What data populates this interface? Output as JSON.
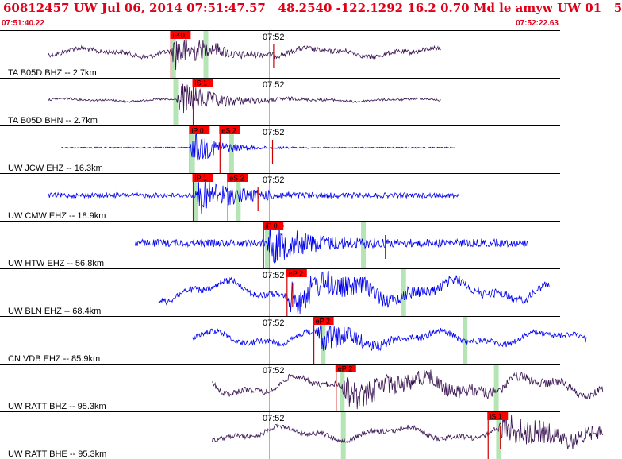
{
  "chart_data": {
    "type": "seismogram",
    "title": "60812457 UW Jul 06, 2014 07:51:47.57   48.2540 -122.1292 16.2 0.70 Md le amyw UW 01   5",
    "window_start": "07:51:40.22",
    "window_end": "07:52:22.63",
    "time_range": [
      "07:51:40.22",
      "07:52:22.63"
    ],
    "minute_marker": "07:52",
    "colors": {
      "header_text": "#e0001a",
      "pick_box": "#ff0000",
      "pick_line": "#cc0000",
      "gap": "#a8e0a8",
      "dark_trace": "#3a1552",
      "blue_trace": "#0000ee",
      "grid": "#000000"
    },
    "series": [
      {
        "name": "TA B05D BHZ -- 2.7km",
        "color": "#3a1552",
        "start_s": 0,
        "end_s": 35.2,
        "onset_s": 11.0,
        "noise": 0.12,
        "amp": 1.0,
        "decay": 2.6,
        "long_period": 0.15,
        "picks": [
          {
            "label": "iP 0",
            "t_s": 11.0
          }
        ],
        "gaps_s": [
          11.2,
          14.1
        ],
        "red_marks_s": [
          20.2
        ]
      },
      {
        "name": "TA B05D BHN -- 2.7km",
        "color": "#3a1552",
        "start_s": 0,
        "end_s": 35.2,
        "onset_s": 11.5,
        "noise": 0.05,
        "amp": 0.9,
        "decay": 3.2,
        "long_period": 0.05,
        "picks": [
          {
            "label": "iS 1",
            "t_s": 13.0
          }
        ],
        "gaps_s": [
          11.4
        ],
        "red_marks_s": []
      },
      {
        "name": "UW JCW EHZ -- 16.3km",
        "color": "#0000ee",
        "start_s": 1.2,
        "end_s": 36.4,
        "onset_s": 12.7,
        "noise": 0.03,
        "amp": 1.0,
        "decay": 2.2,
        "long_period": 0,
        "picks": [
          {
            "label": "iP 0",
            "t_s": 12.7
          },
          {
            "label": "eS 2",
            "t_s": 15.4
          }
        ],
        "gaps_s": [
          12.9,
          16.4
        ],
        "red_marks_s": [
          20.1
        ]
      },
      {
        "name": "UW CMW EHZ -- 18.9km",
        "color": "#0000ee",
        "start_s": 0,
        "end_s": 36.8,
        "onset_s": 13.2,
        "noise": 0.12,
        "amp": 1.0,
        "decay": 3.0,
        "long_period": 0,
        "picks": [
          {
            "label": "iP 1",
            "t_s": 13.0
          },
          {
            "label": "eS 2",
            "t_s": 16.1
          }
        ],
        "gaps_s": [
          13.2,
          17.0
        ],
        "red_marks_s": [
          18.8
        ]
      },
      {
        "name": "UW HTW EHZ -- 56.8km",
        "color": "#0000ee",
        "start_s": 7.8,
        "end_s": 43.0,
        "onset_s": 19.6,
        "noise": 0.18,
        "amp": 1.0,
        "decay": 3.4,
        "long_period": 0,
        "picks": [
          {
            "label": "iP 0",
            "t_s": 19.3
          }
        ],
        "gaps_s": [
          19.6,
          28.2
        ],
        "red_marks_s": [
          30.2
        ]
      },
      {
        "name": "UW BLN EHZ -- 68.4km",
        "color": "#0000ee",
        "start_s": 9.9,
        "end_s": 44.9,
        "onset_s": 21.4,
        "noise": 0.16,
        "amp": 0.75,
        "decay": 7.0,
        "long_period": 0.35,
        "picks": [
          {
            "label": "eP 2",
            "t_s": 21.4
          }
        ],
        "gaps_s": [
          31.8
        ],
        "red_marks_s": [
          21.9
        ]
      },
      {
        "name": "CN VDB EHZ -- 85.9km",
        "color": "#0000ee",
        "start_s": 12.9,
        "end_s": 48.3,
        "onset_s": 24.0,
        "noise": 0.14,
        "amp": 0.85,
        "decay": 2.8,
        "long_period": 0.25,
        "picks": [
          {
            "label": "eP 2",
            "t_s": 23.8
          }
        ],
        "gaps_s": [
          24.6,
          37.3
        ],
        "red_marks_s": []
      },
      {
        "name": "UW RATT BHZ -- 95.3km",
        "color": "#3a1552",
        "start_s": 14.7,
        "end_s": 49.7,
        "onset_s": 26.3,
        "noise": 0.14,
        "amp": 0.6,
        "decay": 9.0,
        "long_period": 0.35,
        "picks": [
          {
            "label": "eP 2",
            "t_s": 25.8
          }
        ],
        "gaps_s": [
          26.3,
          40.1
        ],
        "red_marks_s": []
      },
      {
        "name": "UW RATT BHE -- 95.3km",
        "color": "#3a1552",
        "start_s": 14.7,
        "end_s": 49.7,
        "onset_s": 40.3,
        "noise": 0.12,
        "amp": 0.7,
        "decay": 8.0,
        "long_period": 0.25,
        "picks": [
          {
            "label": "iS 1",
            "t_s": 39.4
          }
        ],
        "gaps_s": [
          26.4,
          40.3
        ],
        "red_marks_s": [
          40.5
        ]
      }
    ]
  }
}
